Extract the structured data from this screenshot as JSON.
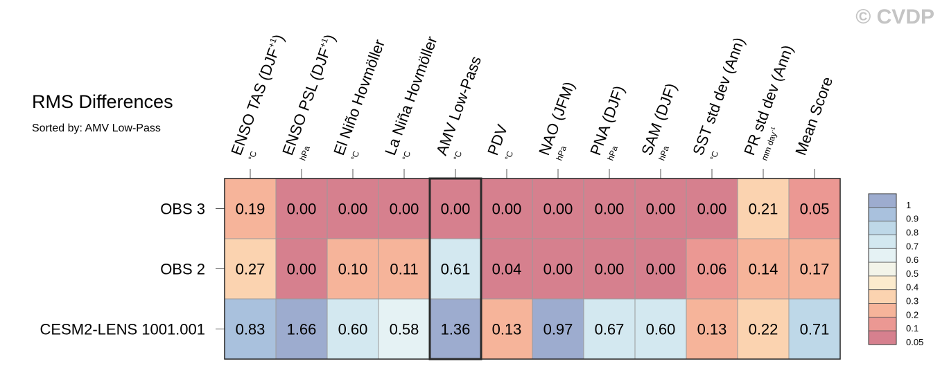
{
  "watermark": "© CVDP",
  "chart_data": {
    "type": "heatmap",
    "title": "RMS Differences",
    "subtitle": "Sorted by: AMV Low-Pass",
    "columns": [
      {
        "label": "ENSO TAS (DJF",
        "sup": "+1",
        "close": ")",
        "unit": "°C"
      },
      {
        "label": "ENSO PSL (DJF",
        "sup": "+1",
        "close": ")",
        "unit": "hPa"
      },
      {
        "label": "El Niño Hovmöller",
        "sup": "",
        "close": "",
        "unit": "°C"
      },
      {
        "label": "La Niña Hovmöller",
        "sup": "",
        "close": "",
        "unit": "°C"
      },
      {
        "label": "AMV Low-Pass",
        "sup": "",
        "close": "",
        "unit": "°C"
      },
      {
        "label": "PDV",
        "sup": "",
        "close": "",
        "unit": "°C"
      },
      {
        "label": "NAO (JFM)",
        "sup": "",
        "close": "",
        "unit": "hPa"
      },
      {
        "label": "PNA (DJF)",
        "sup": "",
        "close": "",
        "unit": "hPa"
      },
      {
        "label": "SAM (DJF)",
        "sup": "",
        "close": "",
        "unit": "hPa"
      },
      {
        "label": "SST std dev (Ann)",
        "sup": "",
        "close": "",
        "unit": "°C"
      },
      {
        "label": "PR std dev (Ann)",
        "sup": "",
        "close": "",
        "unit": "mm day",
        "unit_sup": "-1"
      },
      {
        "label": "Mean Score",
        "sup": "",
        "close": "",
        "unit": ""
      }
    ],
    "rows": [
      "OBS 3",
      "OBS 2",
      "CESM2-LENS 1001.001"
    ],
    "values": [
      [
        0.19,
        0.0,
        0.0,
        0.0,
        0.0,
        0.0,
        0.0,
        0.0,
        0.0,
        0.0,
        0.21,
        0.05
      ],
      [
        0.27,
        0.0,
        0.1,
        0.11,
        0.61,
        0.04,
        0.0,
        0.0,
        0.0,
        0.06,
        0.14,
        0.17
      ],
      [
        0.83,
        1.66,
        0.6,
        0.58,
        1.36,
        0.13,
        0.97,
        0.67,
        0.6,
        0.13,
        0.22,
        0.71
      ]
    ],
    "highlight_column": "AMV Low-Pass",
    "colorbar": {
      "levels": [
        "1",
        "0.9",
        "0.8",
        "0.7",
        "0.6",
        "0.5",
        "0.4",
        "0.3",
        "0.2",
        "0.1",
        "0.05"
      ],
      "colors": [
        "#9daccf",
        "#a9c1dd",
        "#bed8e8",
        "#d3e8f0",
        "#e5f2f4",
        "#f3f4e9",
        "#fcebcd",
        "#fbd3b0",
        "#f6b49a",
        "#eb9893",
        "#d6808e"
      ]
    },
    "grid": false,
    "legend": "right"
  }
}
